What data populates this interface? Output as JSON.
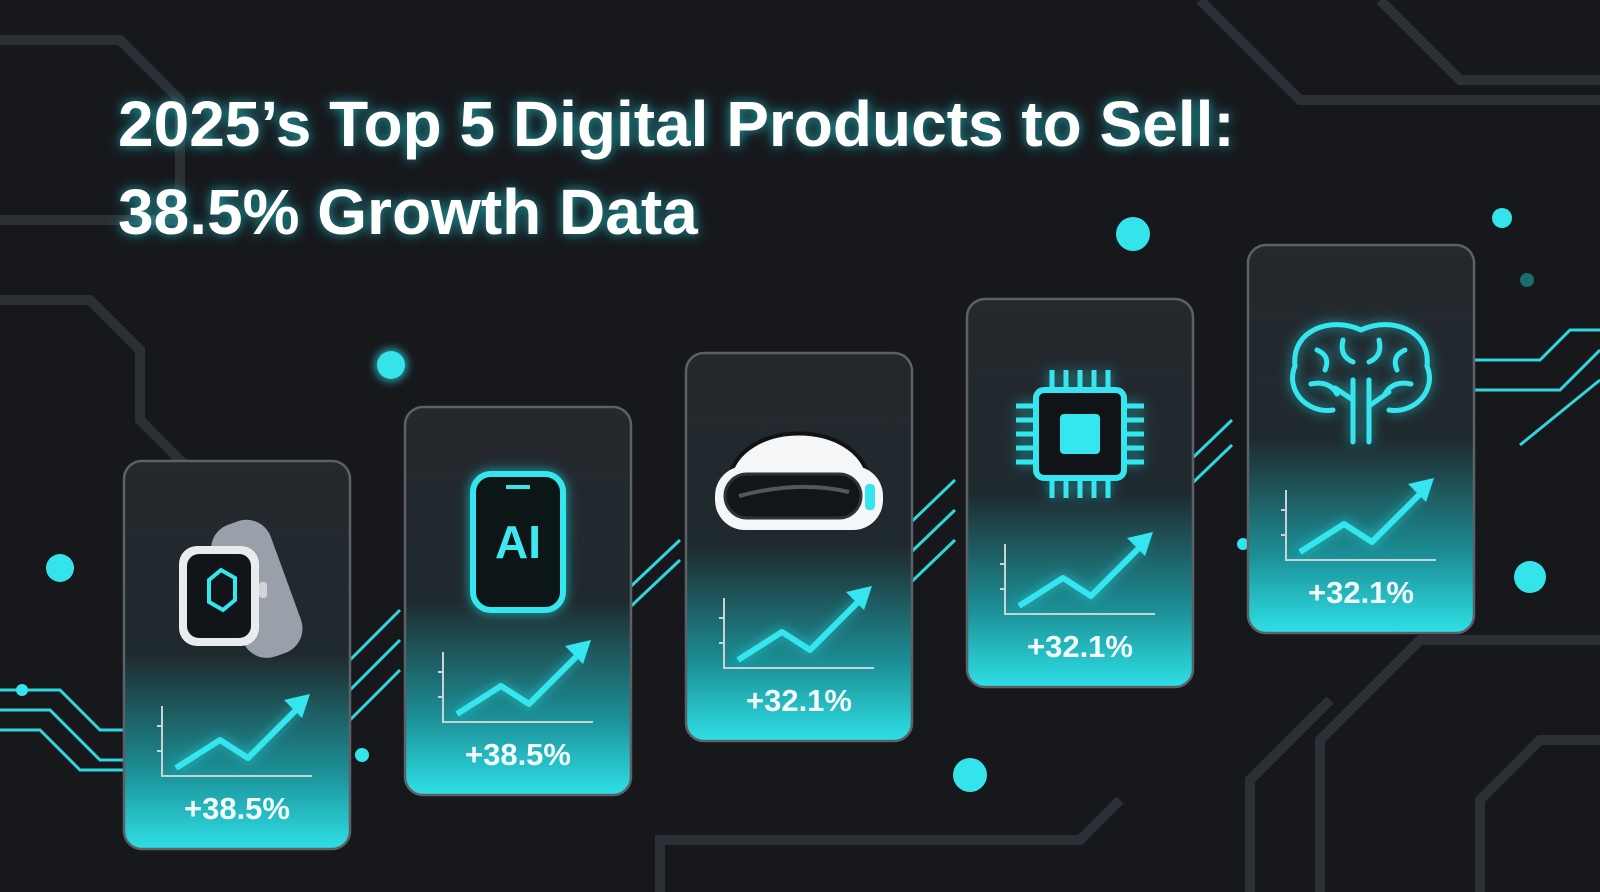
{
  "title_lines": [
    "2025’s Top 5 Digital Products to Sell:",
    "38.5% Growth Data"
  ],
  "cards": [
    {
      "icon": "smartwatch",
      "growth": "+38.5%"
    },
    {
      "icon": "ai-phone",
      "icon_text": "AI",
      "growth": "+38.5%"
    },
    {
      "icon": "vr-headset",
      "growth": "+32.1%"
    },
    {
      "icon": "chip",
      "growth": "+32.1%"
    },
    {
      "icon": "brain",
      "growth": "+32.1%"
    }
  ]
}
